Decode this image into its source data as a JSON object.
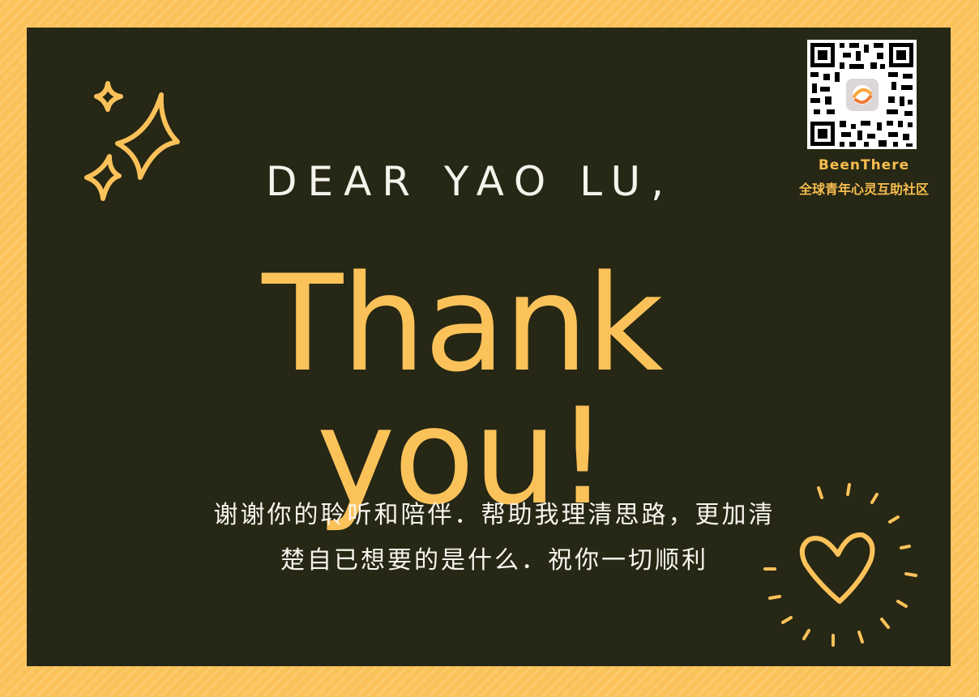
{
  "card": {
    "greeting": "DEAR YAO LU,",
    "headline": "Thank you!",
    "message_lines": [
      "谢谢你的聆听和陪伴．帮助我理清思路，更加清",
      "楚自已想要的是什么．祝你一切顺利"
    ]
  },
  "brand": {
    "name": "BeenThere",
    "tagline": "全球青年心灵互助社区"
  },
  "icons": {
    "sparkles": "sparkle-icon",
    "heart": "heart-icon",
    "qr": "qr-code-icon"
  },
  "colors": {
    "background": "#fcc25a",
    "card": "#262714",
    "accent": "#fcc25a",
    "text": "#f4f3ec"
  }
}
